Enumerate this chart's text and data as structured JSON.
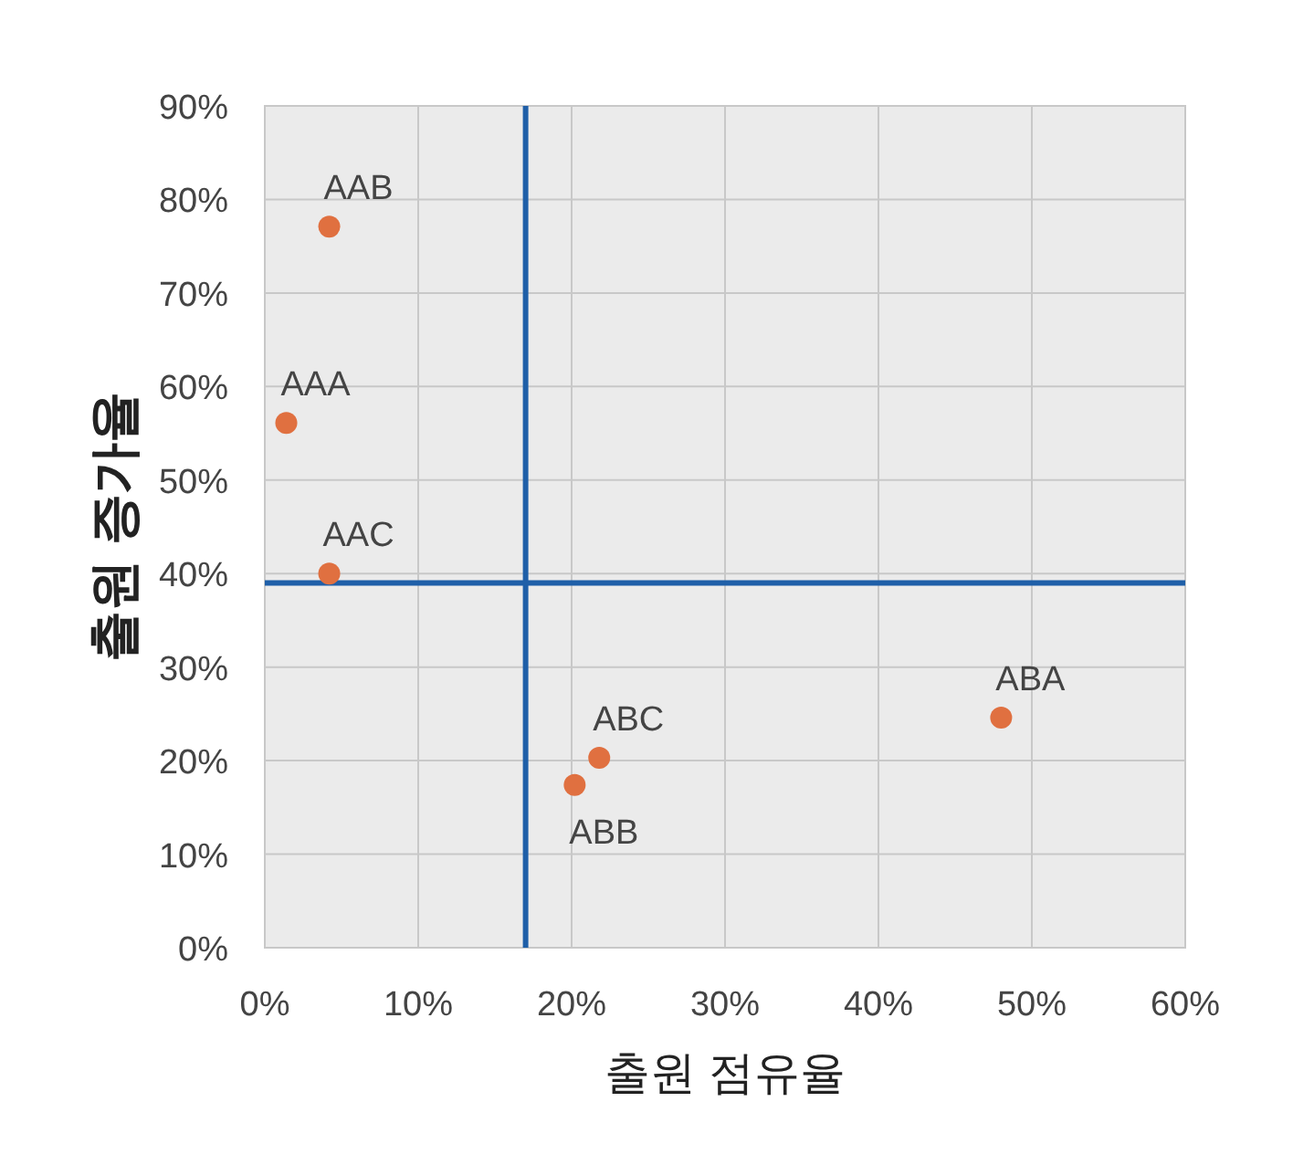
{
  "chart_data": {
    "type": "scatter",
    "xlabel": "출원 점유율",
    "ylabel": "출원 증가율",
    "x": [
      1.4,
      4.2,
      4.2,
      48.0,
      20.2,
      21.8
    ],
    "values": [
      56.1,
      77.1,
      40.0,
      24.6,
      17.4,
      20.3
    ],
    "color": "#e07040",
    "marker": "circle",
    "grid": true,
    "xlim": [
      0,
      60
    ],
    "ylim": [
      0,
      90
    ],
    "xticks": [
      {
        "value": 0,
        "label": "0%"
      },
      {
        "value": 10,
        "label": "10%"
      },
      {
        "value": 20,
        "label": "20%"
      },
      {
        "value": 30,
        "label": "30%"
      },
      {
        "value": 40,
        "label": "40%"
      },
      {
        "value": 50,
        "label": "50%"
      },
      {
        "value": 60,
        "label": "60%"
      }
    ],
    "yticks": [
      {
        "value": 0,
        "label": "0%"
      },
      {
        "value": 10,
        "label": "10%"
      },
      {
        "value": 20,
        "label": "20%"
      },
      {
        "value": 30,
        "label": "30%"
      },
      {
        "value": 40,
        "label": "40%"
      },
      {
        "value": 50,
        "label": "50%"
      },
      {
        "value": 60,
        "label": "60%"
      },
      {
        "value": 70,
        "label": "70%"
      },
      {
        "value": 80,
        "label": "80%"
      },
      {
        "value": 90,
        "label": "90%"
      }
    ],
    "ref_lines": [
      {
        "axis": "x",
        "value": 17,
        "color": "#1f5fa8"
      },
      {
        "axis": "y",
        "value": 39,
        "color": "#1f5fa8"
      }
    ],
    "annotations": [
      {
        "text": "AAA",
        "x": 1.4,
        "y": 56.1
      },
      {
        "text": "AAB",
        "x": 4.2,
        "y": 77.1
      },
      {
        "text": "AAC",
        "x": 4.2,
        "y": 40.0
      },
      {
        "text": "ABA",
        "x": 48.0,
        "y": 24.6
      },
      {
        "text": "ABB",
        "x": 20.2,
        "y": 17.4
      },
      {
        "text": "ABC",
        "x": 21.8,
        "y": 20.3
      }
    ]
  }
}
